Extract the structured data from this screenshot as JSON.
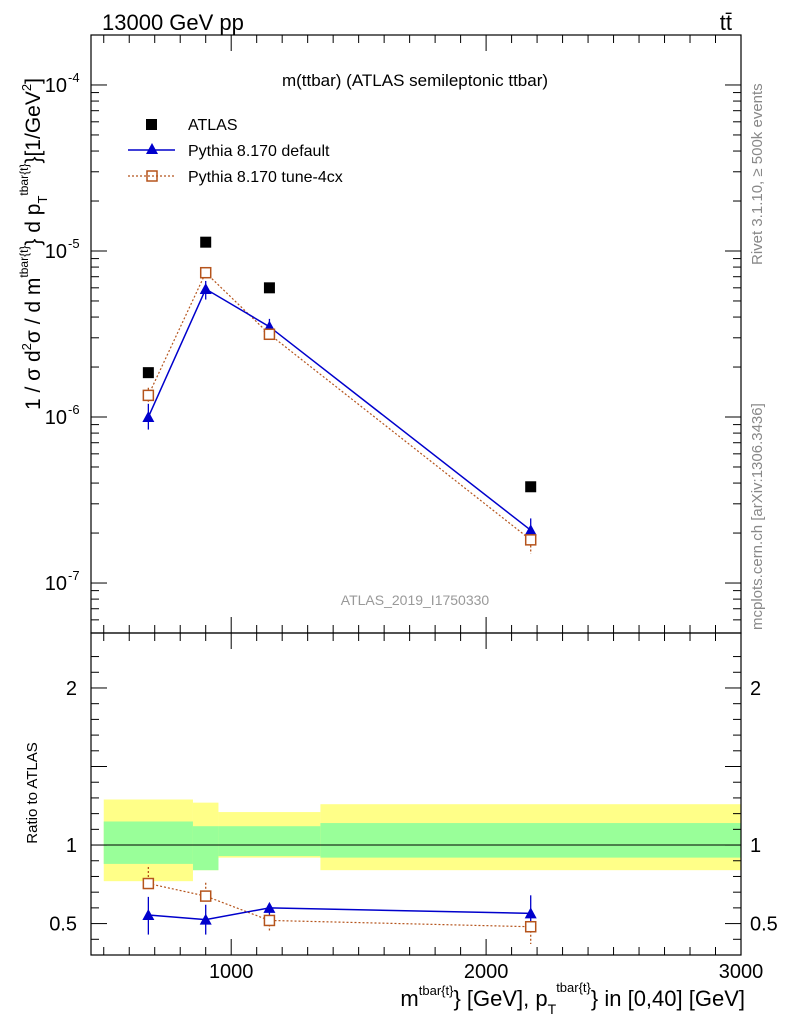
{
  "header": {
    "energy_label": "13000 GeV pp",
    "process_label": "tt̄",
    "plot_title": "m(ttbar) (ATLAS semileptonic ttbar)",
    "analysis_id": "ATLAS_2019_I1750330",
    "rivet_label": "Rivet 3.1.10, ≥ 500k events",
    "mcplots_label": "mcplots.cern.ch [arXiv:1306.3436]"
  },
  "colors": {
    "data": "#000000",
    "default": "#0000cc",
    "tune": "#b5541c",
    "band_inner": "#99ff99",
    "band_outer": "#ffff88"
  },
  "chart_data": [
    {
      "type": "scatter",
      "panel": "main",
      "ylabel_parts": {
        "prefix": "1 / σ d",
        "sup1": "2",
        "mid1": "σ / d m",
        "sup2": "tbar{t}",
        "mid2": "} d p",
        "sub": "T",
        "sup3": "tbar{t}",
        "suffix": "}[1/GeV",
        "sup4": "2",
        "end": "]"
      },
      "yscale": "log",
      "ylim": [
        5e-08,
        0.0002
      ],
      "xlim": [
        450,
        3000
      ],
      "ytick_labels": [
        {
          "base": "10",
          "exp": "-7",
          "value": 1e-07
        },
        {
          "base": "10",
          "exp": "-6",
          "value": 1e-06
        },
        {
          "base": "10",
          "exp": "-5",
          "value": 1e-05
        },
        {
          "base": "10",
          "exp": "-4",
          "value": 0.0001
        }
      ],
      "series": [
        {
          "name": "ATLAS",
          "marker": "square",
          "x": [
            675,
            900,
            1150,
            2175
          ],
          "values": [
            1.85e-06,
            1.13e-05,
            6e-06,
            3.8e-07
          ]
        },
        {
          "name": "Pythia 8.170 default",
          "marker": "triangle",
          "x": [
            675,
            900,
            1150,
            2175
          ],
          "values": [
            1e-06,
            5.9e-06,
            3.5e-06,
            2.08e-07
          ],
          "err_low": [
            8.4e-07,
            5.1e-06,
            3.2e-06,
            1.75e-07
          ],
          "err_high": [
            1.2e-06,
            6.6e-06,
            3.9e-06,
            2.45e-07
          ]
        },
        {
          "name": "Pythia 8.170 tune-4cx",
          "marker": "open-square",
          "x": [
            675,
            900,
            1150,
            2175
          ],
          "values": [
            1.35e-06,
            7.4e-06,
            3.15e-06,
            1.82e-07
          ],
          "err_low": [
            1.2e-06,
            6.8e-06,
            2.95e-06,
            1.5e-07
          ],
          "err_high": [
            1.5e-06,
            8e-06,
            3.35e-06,
            2.1e-07
          ]
        }
      ]
    },
    {
      "type": "scatter",
      "panel": "ratio",
      "ylabel": "Ratio to ATLAS",
      "ylim": [
        0.3,
        2.35
      ],
      "xlim": [
        450,
        3000
      ],
      "ytick_labels": [
        "0.5",
        "1",
        "2"
      ],
      "ytick_values": [
        0.5,
        1,
        2
      ],
      "xtick_labels": [
        "1000",
        "2000",
        "3000"
      ],
      "xtick_values": [
        1000,
        2000,
        3000
      ],
      "xlabel_parts": {
        "a": "m",
        "sup1": "tbar{t}",
        "b": "} [GeV], p",
        "sub": "T",
        "sup2": "tbar{t}",
        "c": "} in [0,40] [GeV]"
      },
      "bands": [
        {
          "x0": 500,
          "x1": 850,
          "inner": [
            0.88,
            1.15
          ],
          "outer": [
            0.77,
            1.29
          ]
        },
        {
          "x0": 850,
          "x1": 950,
          "inner": [
            0.84,
            1.12
          ],
          "outer": [
            0.84,
            1.27
          ]
        },
        {
          "x0": 950,
          "x1": 1350,
          "inner": [
            0.93,
            1.12
          ],
          "outer": [
            0.92,
            1.21
          ]
        },
        {
          "x0": 1350,
          "x1": 3000,
          "inner": [
            0.92,
            1.14
          ],
          "outer": [
            0.84,
            1.26
          ]
        }
      ],
      "series": [
        {
          "name": "Pythia 8.170 default",
          "x": [
            675,
            900,
            1150,
            2175
          ],
          "values": [
            0.555,
            0.525,
            0.6,
            0.565
          ],
          "err_low": [
            0.43,
            0.43,
            0.555,
            0.45
          ],
          "err_high": [
            0.67,
            0.62,
            0.6,
            0.68
          ]
        },
        {
          "name": "Pythia 8.170 tune-4cx",
          "x": [
            675,
            900,
            1150,
            2175
          ],
          "values": [
            0.755,
            0.675,
            0.52,
            0.48
          ],
          "err_low": [
            0.755,
            0.675,
            0.45,
            0.37
          ],
          "err_high": [
            0.86,
            0.76,
            0.52,
            0.48
          ]
        }
      ]
    }
  ],
  "legend": [
    {
      "label": "ATLAS"
    },
    {
      "label": "Pythia 8.170 default"
    },
    {
      "label": "Pythia 8.170 tune-4cx"
    }
  ]
}
